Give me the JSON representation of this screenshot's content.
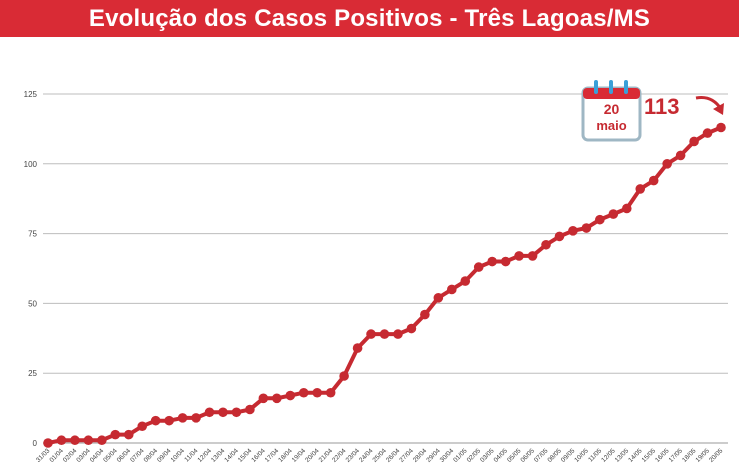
{
  "header": {
    "title": "Evolução dos Casos Positivos - Três Lagoas/MS"
  },
  "colors": {
    "header_bg": "#d92b35",
    "line": "#c62a31",
    "grid": "#bdbdbd",
    "calendar_accent": "#3aa0d8"
  },
  "chart_data": {
    "type": "line",
    "title": "Evolução dos Casos Positivos - Três Lagoas/MS",
    "xlabel": "",
    "ylabel": "",
    "ylim": [
      0,
      125
    ],
    "yticks": [
      0,
      25,
      50,
      75,
      100,
      125
    ],
    "grid": true,
    "categories": [
      "31/03",
      "01/04",
      "02/04",
      "03/04",
      "04/04",
      "05/04",
      "06/04",
      "07/04",
      "08/04",
      "09/04",
      "10/04",
      "11/04",
      "12/04",
      "13/04",
      "14/04",
      "15/04",
      "16/04",
      "17/04",
      "18/04",
      "19/04",
      "20/04",
      "21/04",
      "22/04",
      "23/04",
      "24/04",
      "25/04",
      "26/04",
      "27/04",
      "28/04",
      "29/04",
      "30/04",
      "01/05",
      "02/05",
      "03/05",
      "04/05",
      "05/05",
      "06/05",
      "07/05",
      "08/05",
      "09/05",
      "10/05",
      "11/05",
      "12/05",
      "13/05",
      "14/05",
      "15/05",
      "16/05",
      "17/05",
      "18/05",
      "19/05",
      "20/05"
    ],
    "series": [
      {
        "values": [
          0,
          1,
          1,
          1,
          1,
          3,
          3,
          6,
          8,
          8,
          9,
          9,
          11,
          11,
          11,
          12,
          16,
          16,
          17,
          18,
          18,
          18,
          24,
          34,
          39,
          39,
          39,
          41,
          46,
          52,
          55,
          58,
          63,
          65,
          65,
          67,
          67,
          71,
          74,
          76,
          77,
          80,
          82,
          84,
          91,
          94,
          100,
          103,
          108,
          111,
          113
        ]
      }
    ],
    "annotations": {
      "badge_day": "20",
      "badge_month": "maio",
      "callout_value": "113"
    }
  }
}
